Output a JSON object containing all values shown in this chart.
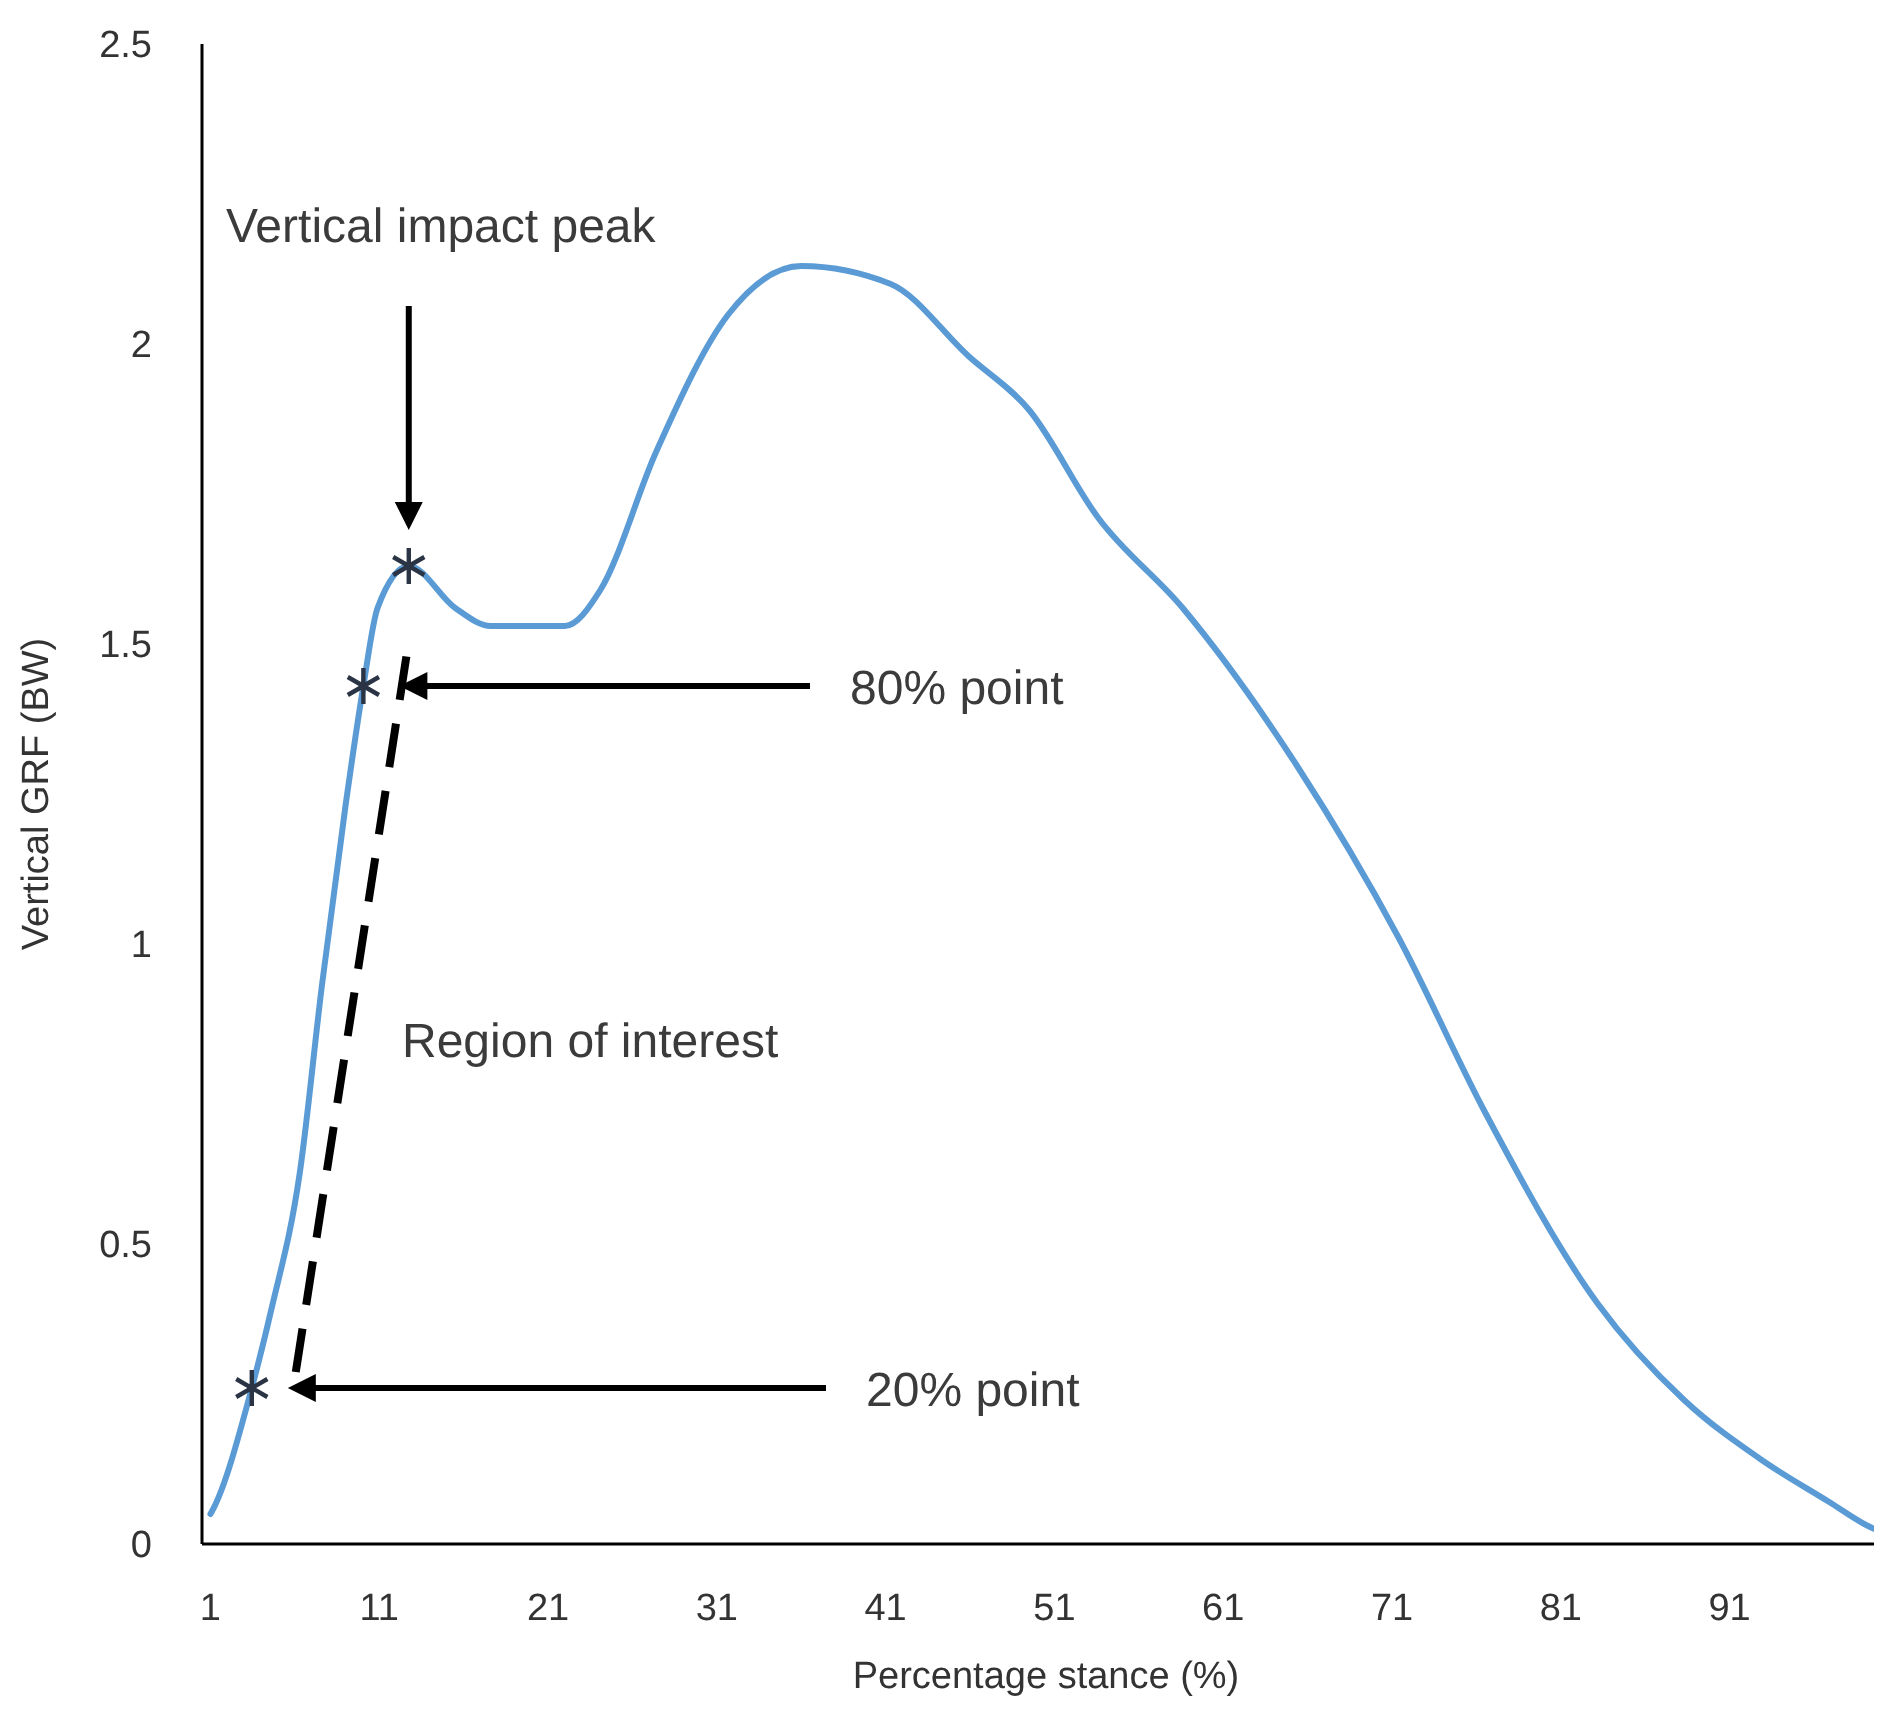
{
  "chart_data": {
    "type": "line",
    "xlabel": "Percentage stance (%)",
    "ylabel": "Vertical GRF (BW)",
    "xlim": [
      0.5,
      100.5
    ],
    "xticks": [
      1,
      11,
      21,
      31,
      41,
      51,
      61,
      71,
      81,
      91
    ],
    "ylim": [
      0,
      2.5
    ],
    "yticks": [
      0,
      0.5,
      1,
      1.5,
      2,
      2.5
    ],
    "grid": false,
    "series": [
      {
        "color": "#5b9bd5",
        "x": [
          1,
          1.1,
          3.45,
          4.6,
          6.3,
          7.6,
          9,
          10.06,
          10.9,
          12.75,
          15.5,
          17.6,
          22,
          24.1,
          27.4,
          31.7,
          36,
          41.3,
          45.9,
          49.5,
          53.6,
          58.6,
          65.3,
          71.4,
          76.5,
          83.2,
          88.3,
          92.9,
          96.9,
          99.2,
          100
        ],
        "values": [
          0.05,
          0.055,
          0.26,
          0.39,
          0.62,
          0.93,
          1.23,
          1.43,
          1.56,
          1.63,
          1.56,
          1.53,
          1.53,
          1.59,
          1.82,
          2.05,
          2.13,
          2.1,
          1.98,
          1.89,
          1.71,
          1.56,
          1.3,
          1.01,
          0.72,
          0.4,
          0.24,
          0.14,
          0.07,
          0.03,
          0.02
        ]
      },
      {
        "type": "scatter",
        "marker": "cross",
        "color": "#2a3444",
        "x": [
          3.45,
          10.06,
          12.75
        ],
        "values": [
          0.26,
          1.43,
          1.63
        ]
      }
    ],
    "annotations": [
      "Vertical impact peak",
      "80% point",
      "20% point",
      "Region of interest"
    ]
  }
}
